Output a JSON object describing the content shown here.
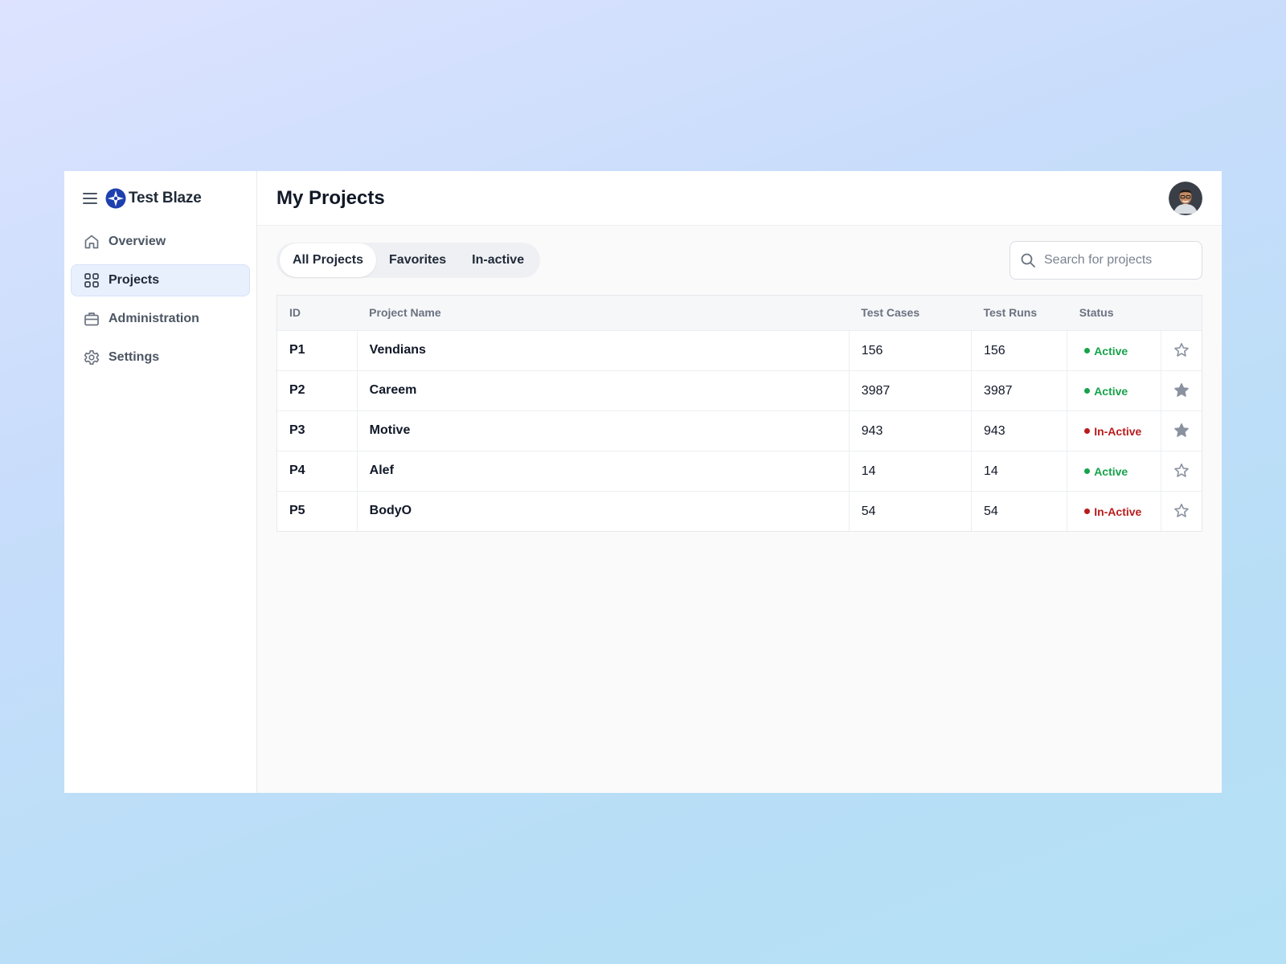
{
  "brand": {
    "name": "Test Blaze",
    "logo": "compass-star-icon"
  },
  "sidebar": {
    "items": [
      {
        "label": "Overview",
        "icon": "home-icon"
      },
      {
        "label": "Projects",
        "icon": "grid-icon",
        "active": true
      },
      {
        "label": "Administration",
        "icon": "briefcase-icon"
      },
      {
        "label": "Settings",
        "icon": "gear-icon"
      }
    ]
  },
  "header": {
    "title": "My Projects",
    "avatar": "user-avatar"
  },
  "tabs": [
    {
      "label": "All Projects",
      "active": true
    },
    {
      "label": "Favorites"
    },
    {
      "label": "In-active"
    }
  ],
  "search": {
    "placeholder": "Search for projects",
    "value": ""
  },
  "table": {
    "columns": [
      "ID",
      "Project Name",
      "Test Cases",
      "Test Runs",
      "Status",
      ""
    ],
    "rows": [
      {
        "id": "P1",
        "name": "Vendians",
        "test_cases": "156",
        "test_runs": "156",
        "status": "Active",
        "favorite": false
      },
      {
        "id": "P2",
        "name": "Careem",
        "test_cases": "3987",
        "test_runs": "3987",
        "status": "Active",
        "favorite": true
      },
      {
        "id": "P3",
        "name": "Motive",
        "test_cases": "943",
        "test_runs": "943",
        "status": "In-Active",
        "favorite": true
      },
      {
        "id": "P4",
        "name": "Alef",
        "test_cases": "14",
        "test_runs": "14",
        "status": "Active",
        "favorite": false
      },
      {
        "id": "P5",
        "name": "BodyO",
        "test_cases": "54",
        "test_runs": "54",
        "status": "In-Active",
        "favorite": false
      }
    ]
  },
  "colors": {
    "accent": "#1e40af",
    "active_status": "#16a34a",
    "inactive_status": "#b91c1c",
    "star": "#8a92a0"
  }
}
